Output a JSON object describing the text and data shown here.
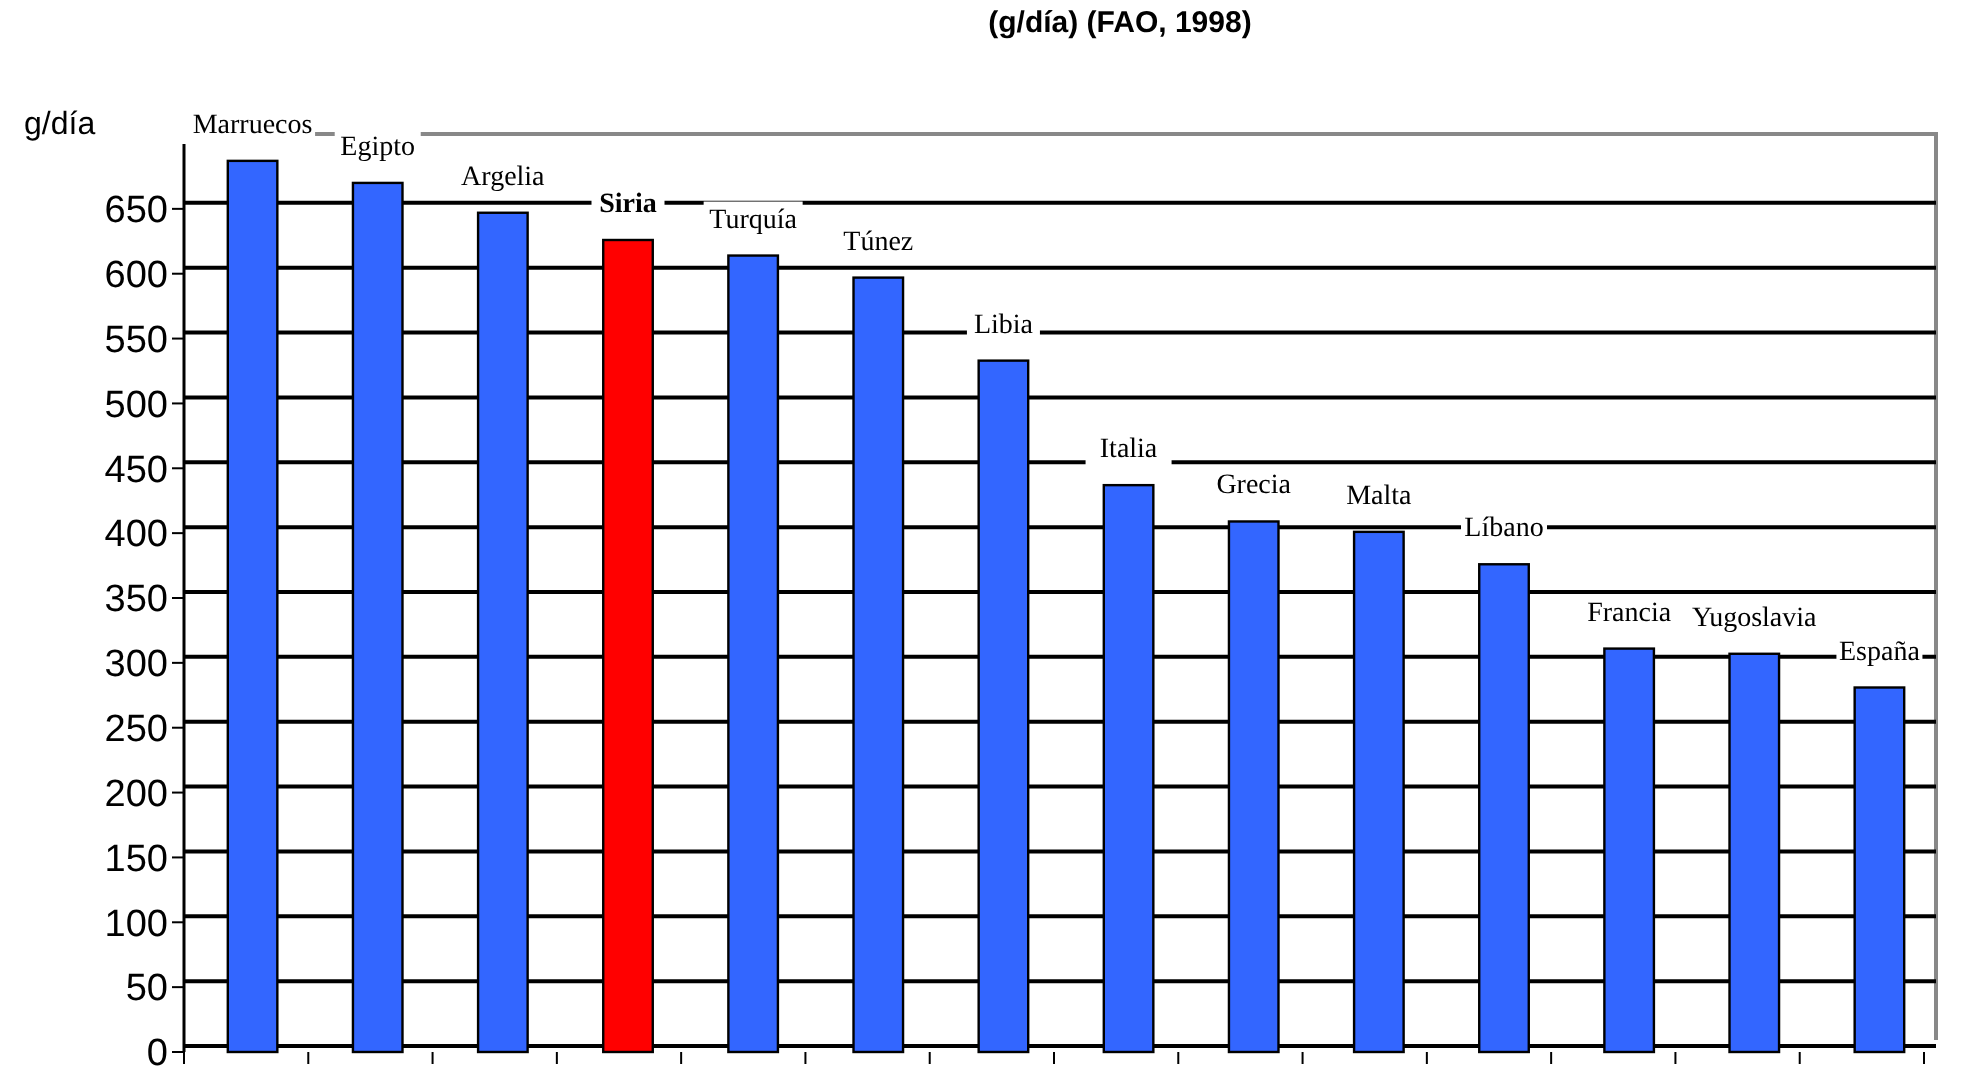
{
  "chart_data": {
    "type": "bar",
    "title": "(g/día) (FAO, 1998)",
    "ylabel": "g/día",
    "categories": [
      "Marruecos",
      "Egipto",
      "Argelia",
      "Siria",
      "Turquía",
      "Túnez",
      "Libia",
      "Italia",
      "Grecia",
      "Malta",
      "Líbano",
      "Francia",
      "Yugoslavia",
      "España"
    ],
    "values": [
      687,
      670,
      647,
      626,
      614,
      597,
      533,
      437,
      409,
      401,
      376,
      311,
      307,
      281
    ],
    "colors": [
      "#3366ff",
      "#3366ff",
      "#3366ff",
      "#ff0000",
      "#3366ff",
      "#3366ff",
      "#3366ff",
      "#3366ff",
      "#3366ff",
      "#3366ff",
      "#3366ff",
      "#3366ff",
      "#3366ff",
      "#3366ff"
    ],
    "ylim": [
      0,
      700
    ],
    "yticks": [
      0,
      50,
      100,
      150,
      200,
      250,
      300,
      350,
      400,
      450,
      500,
      550,
      600,
      650
    ],
    "grid": "y"
  }
}
